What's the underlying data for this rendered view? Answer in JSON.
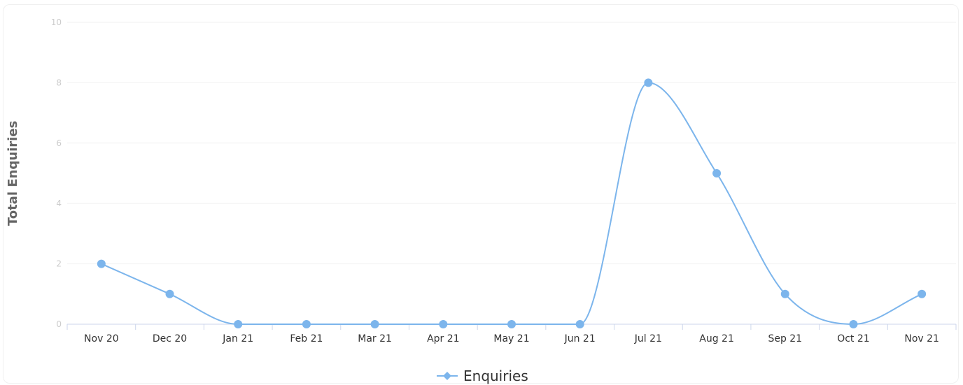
{
  "chart_data": {
    "type": "line",
    "ylabel": "Total Enquiries",
    "categories": [
      "Nov 20",
      "Dec 20",
      "Jan 21",
      "Feb 21",
      "Mar 21",
      "Apr 21",
      "May 21",
      "Jun 21",
      "Jul 21",
      "Aug 21",
      "Sep 21",
      "Oct 21",
      "Nov 21"
    ],
    "series": [
      {
        "name": "Enquiries",
        "color": "#7cb5ec",
        "values": [
          2,
          1,
          0,
          0,
          0,
          0,
          0,
          0,
          8,
          5,
          1,
          0,
          1
        ]
      }
    ],
    "ylim": [
      0,
      10
    ],
    "yticks": [
      0,
      2,
      4,
      6,
      8,
      10
    ],
    "grid": true,
    "legend": "bottom-center"
  }
}
